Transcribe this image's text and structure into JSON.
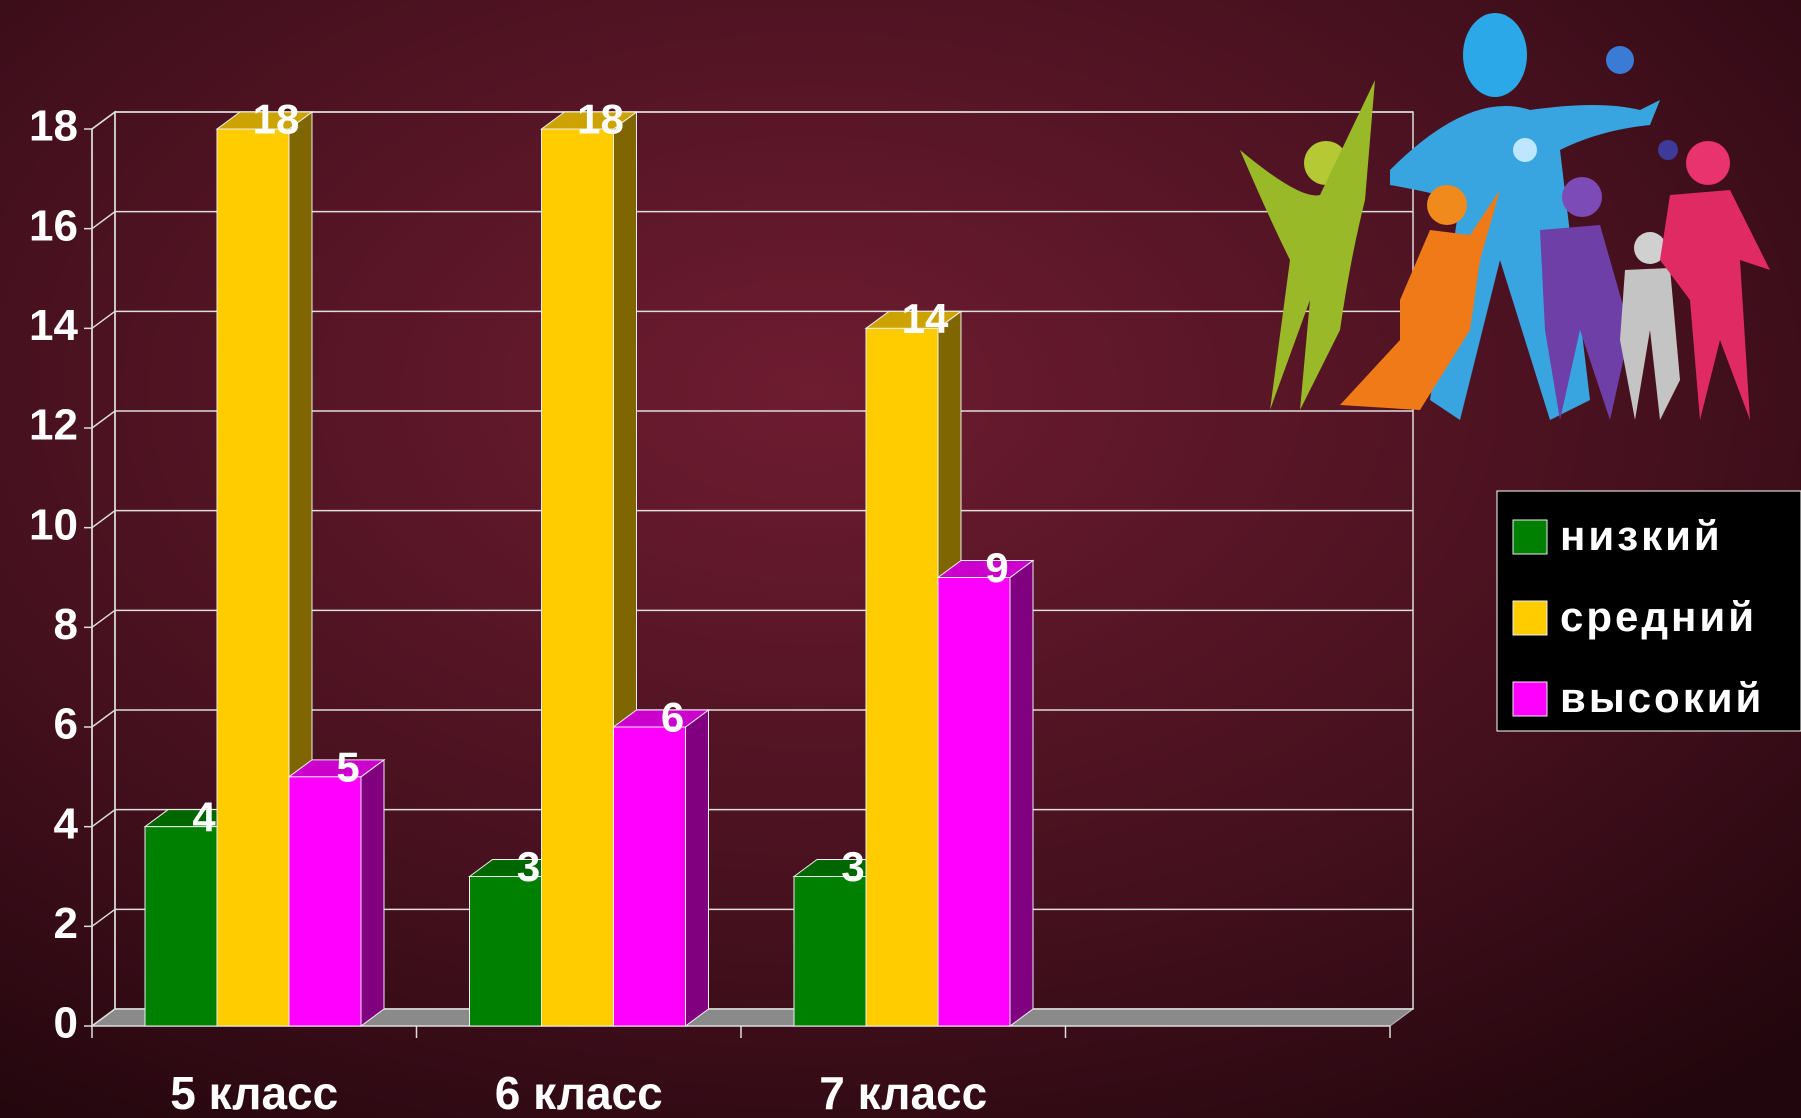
{
  "chart_data": {
    "type": "bar3d",
    "categories": [
      "5 класс",
      "6 класс",
      "7 класс",
      null
    ],
    "series": [
      {
        "name": "низкий",
        "color": "#008000",
        "values": [
          4,
          3,
          3,
          null
        ]
      },
      {
        "name": "средний",
        "color": "#ffcc00",
        "values": [
          18,
          18,
          14,
          null
        ]
      },
      {
        "name": "высокий",
        "color": "#ff00ff",
        "values": [
          5,
          6,
          9,
          null
        ]
      }
    ],
    "ylim": [
      0,
      18
    ],
    "yticks": [
      0,
      2,
      4,
      6,
      8,
      10,
      12,
      14,
      16,
      18
    ],
    "grid": true,
    "legend": "right"
  }
}
